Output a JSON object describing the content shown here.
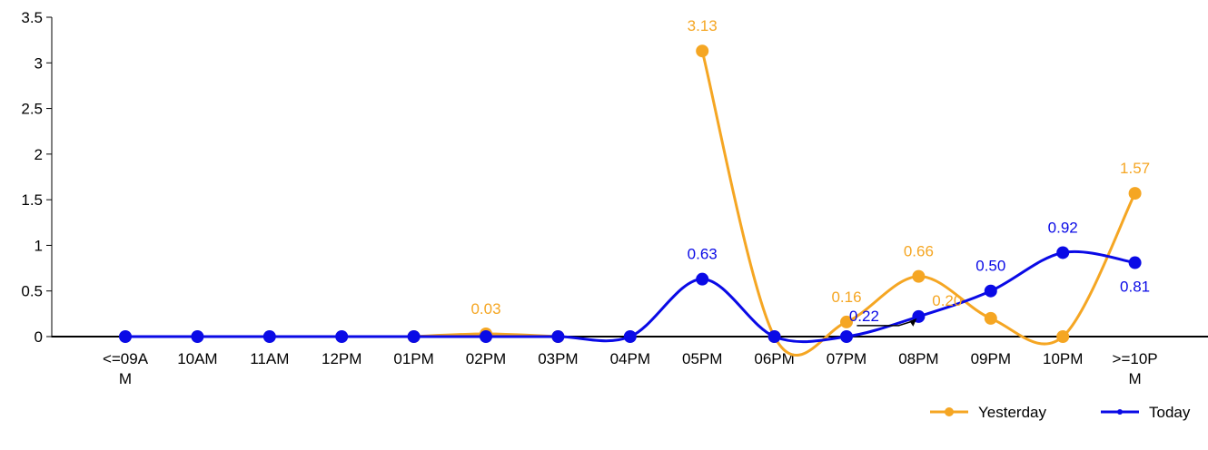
{
  "chart_data": {
    "type": "line",
    "title": "",
    "xlabel": "",
    "ylabel": "",
    "ylim": [
      0,
      3.5
    ],
    "y_ticks": [
      "0",
      "0.5",
      "1",
      "1.5",
      "2",
      "2.5",
      "3",
      "3.5"
    ],
    "categories": [
      [
        "<=09A",
        "M"
      ],
      [
        "10AM"
      ],
      [
        "11AM"
      ],
      [
        "12PM"
      ],
      [
        "01PM"
      ],
      [
        "02PM"
      ],
      [
        "03PM"
      ],
      [
        "04PM"
      ],
      [
        "05PM"
      ],
      [
        "06PM"
      ],
      [
        "07PM"
      ],
      [
        "08PM"
      ],
      [
        "09PM"
      ],
      [
        "10PM"
      ],
      [
        ">=10P",
        "M"
      ]
    ],
    "grid": false,
    "legend_position": "bottom-right",
    "series": [
      {
        "name": "Yesterday",
        "color": "#F5A623",
        "values": [
          null,
          null,
          null,
          null,
          0,
          0.03,
          0,
          null,
          3.13,
          0,
          0.16,
          0.66,
          0.2,
          0,
          1.57
        ],
        "labels": [
          null,
          null,
          null,
          null,
          null,
          "0.03",
          null,
          null,
          "3.13",
          null,
          "0.16",
          "0.66",
          "0.20",
          null,
          "1.57"
        ]
      },
      {
        "name": "Today",
        "color": "#0A0AE6",
        "values": [
          0,
          0,
          0,
          0,
          0,
          0,
          0,
          0,
          0.63,
          0,
          0,
          0.22,
          0.5,
          0.92,
          0.81
        ],
        "labels": [
          null,
          null,
          null,
          null,
          null,
          null,
          null,
          null,
          "0.63",
          null,
          null,
          "0.22",
          "0.50",
          "0.92",
          "0.81"
        ]
      }
    ]
  }
}
